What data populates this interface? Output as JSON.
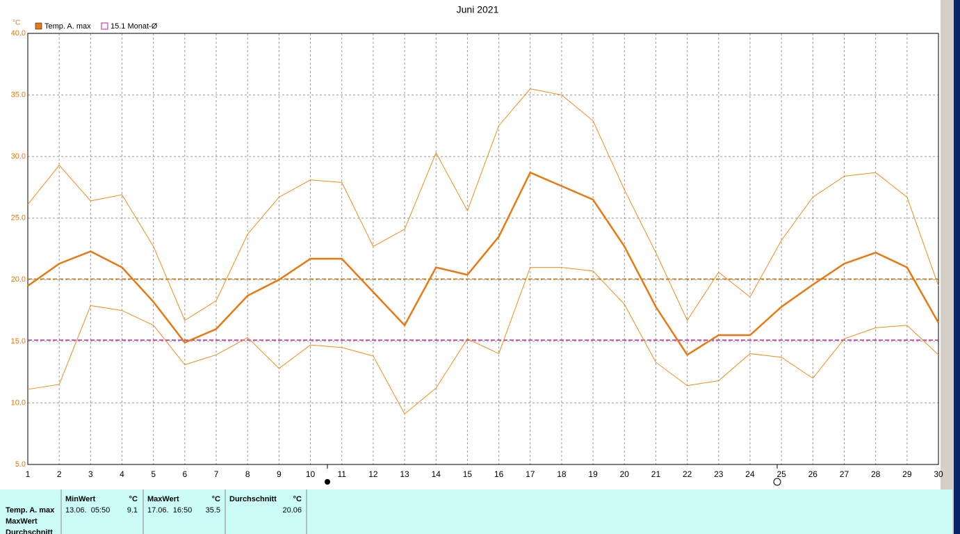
{
  "chart_data": {
    "type": "line",
    "title": "Juni 2021",
    "y_unit": "°C",
    "x": [
      1,
      2,
      3,
      4,
      5,
      6,
      7,
      8,
      9,
      10,
      11,
      12,
      13,
      14,
      15,
      16,
      17,
      18,
      19,
      20,
      21,
      22,
      23,
      24,
      25,
      26,
      27,
      28,
      29,
      30
    ],
    "xlim": [
      1,
      30
    ],
    "xticks": [
      1,
      2,
      3,
      4,
      5,
      6,
      7,
      8,
      9,
      10,
      11,
      12,
      13,
      14,
      15,
      16,
      17,
      18,
      19,
      20,
      21,
      22,
      23,
      24,
      25,
      26,
      27,
      28,
      29,
      30
    ],
    "ylim": [
      5,
      40
    ],
    "yticks": [
      {
        "value": 5,
        "label": "5.0"
      },
      {
        "value": 10,
        "label": "10.0"
      },
      {
        "value": 15,
        "label": "15.0"
      },
      {
        "value": 20,
        "label": "20.0"
      },
      {
        "value": 25,
        "label": "25.0"
      },
      {
        "value": 30,
        "label": "30.0"
      },
      {
        "value": 35,
        "label": "35.0"
      },
      {
        "value": 40,
        "label": "40.0"
      }
    ],
    "grid": true,
    "series": [
      {
        "name": "Temp. A. max",
        "color": "#e87810",
        "values": [
          19.5,
          21.3,
          22.3,
          21.0,
          18.2,
          14.9,
          16.0,
          18.7,
          20.0,
          21.7,
          21.7,
          19.0,
          16.3,
          21.0,
          20.4,
          23.5,
          28.7,
          27.6,
          26.5,
          22.7,
          17.8,
          13.9,
          15.5,
          15.5,
          17.8,
          19.6,
          21.3,
          22.2,
          21.0,
          16.5
        ]
      },
      {
        "color": "#f08c1c",
        "values": [
          26.1,
          29.3,
          26.4,
          26.9,
          22.7,
          16.7,
          18.3,
          23.7,
          26.7,
          28.1,
          27.9,
          22.7,
          24.1,
          30.3,
          25.6,
          32.5,
          35.5,
          35.0,
          32.9,
          27.3,
          22.2,
          16.7,
          20.6,
          18.6,
          23.2,
          26.7,
          28.4,
          28.7,
          26.7,
          19.5
        ]
      },
      {
        "color": "#f08c1c",
        "values": [
          11.1,
          11.5,
          17.9,
          17.5,
          16.3,
          13.1,
          13.9,
          15.3,
          12.8,
          14.7,
          14.5,
          13.8,
          9.1,
          11.2,
          15.2,
          14.0,
          21.0,
          21.0,
          20.7,
          18.0,
          13.3,
          11.4,
          11.8,
          14.0,
          13.7,
          12.0,
          15.2,
          16.1,
          16.3,
          13.9
        ]
      }
    ],
    "reference_lines": [
      {
        "value": 20.06,
        "color": "#d07810"
      },
      {
        "value": 15.1,
        "label": "15.1 Monat-Ø",
        "color": "#c020a0"
      }
    ]
  },
  "table": {
    "row_labels": [
      "Temp. A. max",
      "MaxWert",
      "Durchschnitt"
    ],
    "columns": [
      {
        "header": "MinWert",
        "unit": "°C",
        "date": "13.06.  05:50",
        "value": "9.1"
      },
      {
        "header": "MaxWert",
        "unit": "°C",
        "date": "17.06.  16:50",
        "value": "35.5"
      },
      {
        "header": "Durchschnitt",
        "unit": "°C",
        "value": "20.06"
      }
    ]
  }
}
